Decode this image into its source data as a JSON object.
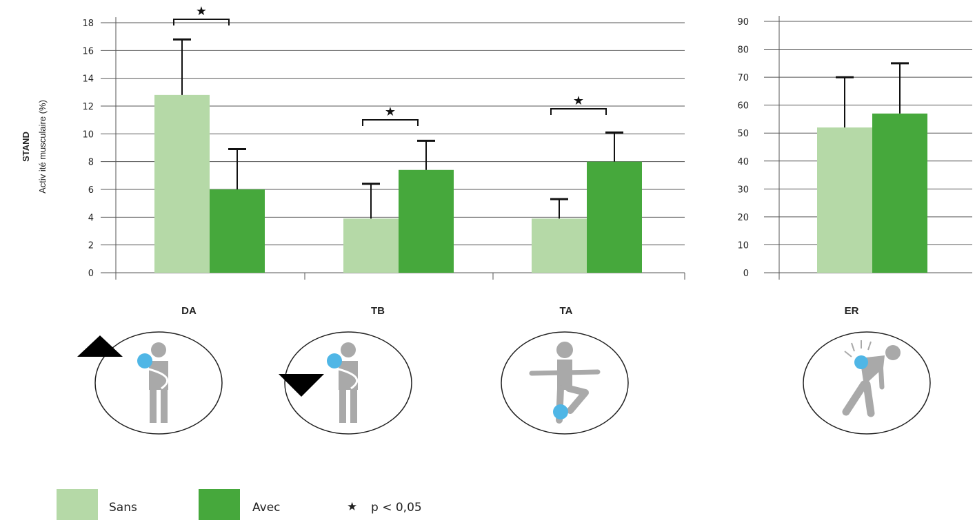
{
  "colors": {
    "sans": "#b5d9a7",
    "avec": "#46a83c",
    "grid": "#555555",
    "error_bar": "#111111",
    "icon_figure": "#a9a9a9",
    "icon_marker": "#4fb6e6",
    "arrow": "#000000"
  },
  "y_axis_label": {
    "line1": "STAND",
    "line2": "Activ ité musculaire (%)"
  },
  "legend": {
    "items": [
      {
        "label": "Sans",
        "color_key": "sans"
      },
      {
        "label": "Avec",
        "color_key": "avec"
      }
    ],
    "significance_symbol": "★",
    "significance_label": "p < 0,05"
  },
  "icons": [
    {
      "category": "DA",
      "name": "shoulder-flexion-icon",
      "arrow": "up"
    },
    {
      "category": "TB",
      "name": "shoulder-extension-icon",
      "arrow": "down"
    },
    {
      "category": "TA",
      "name": "standing-leg-raise-icon",
      "arrow": "none"
    },
    {
      "category": "ER",
      "name": "bent-back-icon",
      "arrow": "none"
    }
  ],
  "chart_data": [
    {
      "type": "bar",
      "categories": [
        "DA",
        "TB",
        "TA"
      ],
      "series": [
        {
          "name": "Sans",
          "values": [
            12.8,
            3.9,
            3.9
          ],
          "error": [
            4.0,
            2.5,
            1.4
          ]
        },
        {
          "name": "Avec",
          "values": [
            6.0,
            7.4,
            8.0
          ],
          "error": [
            2.9,
            2.1,
            2.1
          ]
        }
      ],
      "ylim": [
        0,
        18
      ],
      "yticks": [
        0,
        2,
        4,
        6,
        8,
        10,
        12,
        14,
        16,
        18
      ],
      "grid": true,
      "significance": [
        {
          "category": "DA",
          "symbol": "★"
        },
        {
          "category": "TB",
          "symbol": "★"
        },
        {
          "category": "TA",
          "symbol": "★"
        }
      ]
    },
    {
      "type": "bar",
      "categories": [
        "ER"
      ],
      "series": [
        {
          "name": "Sans",
          "values": [
            52
          ],
          "error": [
            18
          ]
        },
        {
          "name": "Avec",
          "values": [
            57
          ],
          "error": [
            18
          ]
        }
      ],
      "ylim": [
        0,
        90
      ],
      "yticks": [
        0,
        10,
        20,
        30,
        40,
        50,
        60,
        70,
        80,
        90
      ],
      "grid": true,
      "significance": []
    }
  ]
}
